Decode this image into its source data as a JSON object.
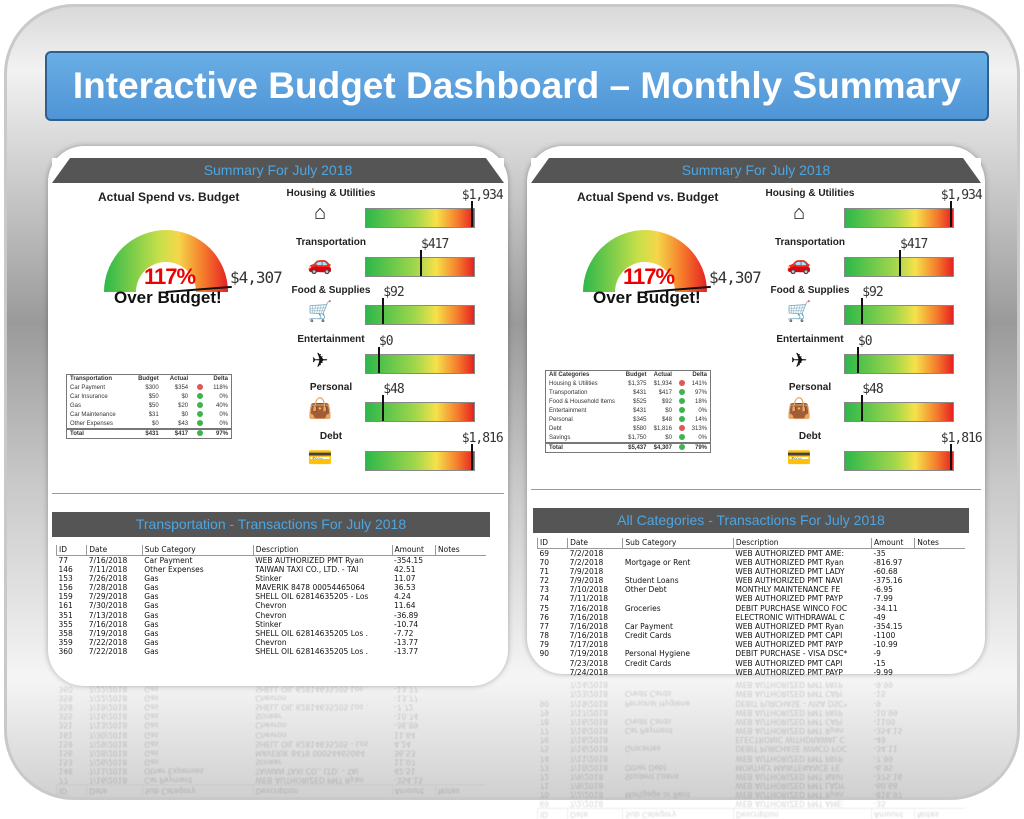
{
  "title": "Interactive Budget Dashboard – Monthly Summary",
  "colors": {
    "banner": "#5b9fdc",
    "header_bar": "#555555",
    "header_text": "#4ba6e4",
    "over": "#e60000",
    "red_dot": "#e05555",
    "green_dot": "#3fb34f"
  },
  "dashboards": [
    {
      "summary_title": "Summary For July 2018",
      "gauge": {
        "title": "Actual Spend vs. Budget",
        "percent": "117%",
        "status": "Over Budget!",
        "actual": "$4,307",
        "level": 1.17
      },
      "categories": [
        {
          "name": "Housing & Utilities",
          "icon": "house-icon",
          "glyph": "⌂",
          "value": "$1,934",
          "level": 0.97
        },
        {
          "name": "Transportation",
          "icon": "car-icon",
          "glyph": "🚗",
          "value": "$417",
          "level": 0.5
        },
        {
          "name": "Food & Supplies",
          "icon": "cart-icon",
          "glyph": "🛒",
          "value": "$92",
          "level": 0.15
        },
        {
          "name": "Entertainment",
          "icon": "airplane-icon",
          "glyph": "✈",
          "value": "$0",
          "level": 0.11
        },
        {
          "name": "Personal",
          "icon": "bag-icon",
          "glyph": "👜",
          "value": "$48",
          "level": 0.15
        },
        {
          "name": "Debt",
          "icon": "credit-card-icon",
          "glyph": "💳",
          "value": "$1,816",
          "level": 0.97
        }
      ],
      "table": {
        "headers": [
          "Transportation",
          "Budget",
          "Actual",
          "Delta"
        ],
        "rows": [
          [
            "Car Payment",
            "$300",
            "$354",
            "red",
            "118%"
          ],
          [
            "Car Insurance",
            "$50",
            "$0",
            "green",
            "0%"
          ],
          [
            "Gas",
            "$50",
            "$20",
            "green",
            "40%"
          ],
          [
            "Car Maintenance",
            "$31",
            "$0",
            "green",
            "0%"
          ],
          [
            "Other Expenses",
            "$0",
            "$43",
            "green",
            "0%"
          ]
        ],
        "total": [
          "Total",
          "$431",
          "$417",
          "green",
          "97%"
        ]
      },
      "tx_title": "Transportation - Transactions For July 2018",
      "tx_headers": [
        "ID",
        "Date",
        "Sub Category",
        "Description",
        "Amount",
        "Notes"
      ],
      "tx_rows": [
        [
          "77",
          "7/16/2018",
          "Car Payment",
          "WEB AUTHORIZED PMT Ryan",
          "-354.15"
        ],
        [
          "146",
          "7/11/2018",
          "Other Expenses",
          "TAIWAN TAXI CO., LTD. - TAI",
          "42.51"
        ],
        [
          "153",
          "7/26/2018",
          "Gas",
          "Stinker",
          "11.07"
        ],
        [
          "156",
          "7/28/2018",
          "Gas",
          "MAVERIK 8478 00054465064",
          "36.53"
        ],
        [
          "159",
          "7/29/2018",
          "Gas",
          "SHELL OIL 62814635205 - Los",
          "4.24"
        ],
        [
          "161",
          "7/30/2018",
          "Gas",
          "Chevron",
          "11.64"
        ],
        [
          "351",
          "7/13/2018",
          "Gas",
          "Chevron",
          "-36.89"
        ],
        [
          "355",
          "7/16/2018",
          "Gas",
          "Stinker",
          "-10.74"
        ],
        [
          "358",
          "7/19/2018",
          "Gas",
          "SHELL OIL 62814635205 Los .",
          "-7.72"
        ],
        [
          "359",
          "7/22/2018",
          "Gas",
          "Chevron",
          "-13.77"
        ],
        [
          "360",
          "7/22/2018",
          "Gas",
          "SHELL OIL 62814635205 Los .",
          "-13.77"
        ]
      ]
    },
    {
      "summary_title": "Summary For July 2018",
      "gauge": {
        "title": "Actual Spend vs. Budget",
        "percent": "117%",
        "status": "Over Budget!",
        "actual": "$4,307",
        "level": 1.17
      },
      "categories": [
        {
          "name": "Housing & Utilities",
          "icon": "house-icon",
          "glyph": "⌂",
          "value": "$1,934",
          "level": 0.97
        },
        {
          "name": "Transportation",
          "icon": "car-icon",
          "glyph": "🚗",
          "value": "$417",
          "level": 0.5
        },
        {
          "name": "Food & Supplies",
          "icon": "cart-icon",
          "glyph": "🛒",
          "value": "$92",
          "level": 0.15
        },
        {
          "name": "Entertainment",
          "icon": "airplane-icon",
          "glyph": "✈",
          "value": "$0",
          "level": 0.11
        },
        {
          "name": "Personal",
          "icon": "bag-icon",
          "glyph": "👜",
          "value": "$48",
          "level": 0.15
        },
        {
          "name": "Debt",
          "icon": "credit-card-icon",
          "glyph": "💳",
          "value": "$1,816",
          "level": 0.97
        }
      ],
      "table": {
        "headers": [
          "All Categories",
          "Budget",
          "Actual",
          "Delta"
        ],
        "rows": [
          [
            "Housing & Utilities",
            "$1,375",
            "$1,934",
            "red",
            "141%"
          ],
          [
            "Transportation",
            "$431",
            "$417",
            "green",
            "97%"
          ],
          [
            "Food & Household Items",
            "$525",
            "$92",
            "green",
            "18%"
          ],
          [
            "Entertainment",
            "$431",
            "$0",
            "green",
            "0%"
          ],
          [
            "Personal",
            "$345",
            "$48",
            "green",
            "14%"
          ],
          [
            "Debt",
            "$580",
            "$1,816",
            "red",
            "313%"
          ],
          [
            "Savings",
            "$1,750",
            "$0",
            "green",
            "0%"
          ]
        ],
        "total": [
          "Total",
          "$5,437",
          "$4,307",
          "green",
          "79%"
        ]
      },
      "tx_title": "All Categories - Transactions For July 2018",
      "tx_headers": [
        "ID",
        "Date",
        "Sub Category",
        "Description",
        "Amount",
        "Notes"
      ],
      "tx_rows": [
        [
          "69",
          "7/2/2018",
          "",
          "WEB AUTHORIZED PMT AME:",
          "-35"
        ],
        [
          "70",
          "7/2/2018",
          "Mortgage or Rent",
          "WEB AUTHORIZED PMT Ryan",
          "-816.97"
        ],
        [
          "71",
          "7/9/2018",
          "",
          "WEB AUTHORIZED PMT LADY",
          "-60.68"
        ],
        [
          "72",
          "7/9/2018",
          "Student Loans",
          "WEB AUTHORIZED PMT NAVI",
          "-375.16"
        ],
        [
          "73",
          "7/10/2018",
          "Other Debt",
          "MONTHLY MAINTENANCE FE",
          "-6.95"
        ],
        [
          "74",
          "7/11/2018",
          "",
          "WEB AUTHORIZED PMT PAYP",
          "-7.99"
        ],
        [
          "75",
          "7/16/2018",
          "Groceries",
          "DEBIT PURCHASE WINCO FOC",
          "-34.11"
        ],
        [
          "76",
          "7/16/2018",
          "",
          "ELECTRONIC WITHDRAWAL C",
          "-49"
        ],
        [
          "77",
          "7/16/2018",
          "Car Payment",
          "WEB AUTHORIZED PMT Ryan",
          "-354.15"
        ],
        [
          "78",
          "7/16/2018",
          "Credit Cards",
          "WEB AUTHORIZED PMT CAPI",
          "-1100"
        ],
        [
          "79",
          "7/17/2018",
          "",
          "WEB AUTHORIZED PMT PAYP",
          "-10.99"
        ],
        [
          "90",
          "7/19/2018",
          "Personal Hygiene",
          "DEBIT PURCHASE - VISA DSC*",
          "-9"
        ],
        [
          "",
          "7/23/2018",
          "Credit Cards",
          "WEB AUTHORIZED PMT CAPI",
          "-15"
        ],
        [
          "",
          "7/24/2018",
          "",
          "WEB AUTHORIZED PMT PAYP",
          "-9.99"
        ]
      ]
    }
  ]
}
